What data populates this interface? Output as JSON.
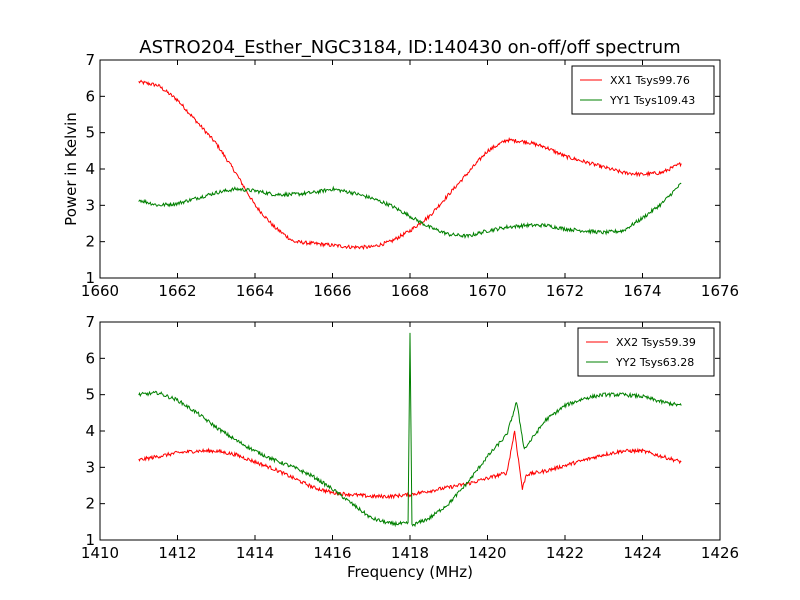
{
  "figure": {
    "title": "ASTRO204_Esther_NGC3184, ID:140430 on-off/off spectrum"
  },
  "chart_data": [
    {
      "type": "line",
      "title": "ASTRO204_Esther_NGC3184, ID:140430 on-off/off spectrum",
      "xlabel": "",
      "ylabel": "Power in Kelvin",
      "xlim": [
        1660,
        1676
      ],
      "ylim": [
        1,
        7
      ],
      "xticks": [
        "1660",
        "1662",
        "1664",
        "1666",
        "1668",
        "1670",
        "1672",
        "1674",
        "1676"
      ],
      "yticks": [
        "1",
        "2",
        "3",
        "4",
        "5",
        "6",
        "7"
      ],
      "grid": false,
      "legend_position": "top-right",
      "series": [
        {
          "name": "XX1 Tsys99.76",
          "color": "#ff0000",
          "x": [
            1661.0,
            1661.5,
            1662.0,
            1662.5,
            1663.0,
            1663.5,
            1664.0,
            1664.5,
            1665.0,
            1665.5,
            1666.0,
            1666.5,
            1667.0,
            1667.5,
            1668.0,
            1668.5,
            1669.0,
            1669.5,
            1670.0,
            1670.5,
            1671.0,
            1671.5,
            1672.0,
            1672.5,
            1673.0,
            1673.5,
            1674.0,
            1674.5,
            1675.0
          ],
          "values": [
            6.4,
            6.3,
            5.9,
            5.3,
            4.7,
            3.9,
            3.0,
            2.4,
            2.0,
            1.95,
            1.9,
            1.85,
            1.85,
            2.0,
            2.3,
            2.7,
            3.3,
            3.9,
            4.5,
            4.8,
            4.75,
            4.6,
            4.35,
            4.2,
            4.05,
            3.9,
            3.85,
            3.9,
            4.15
          ]
        },
        {
          "name": "YY1 Tsys109.43",
          "color": "#008000",
          "x": [
            1661.0,
            1661.5,
            1662.0,
            1662.5,
            1663.0,
            1663.5,
            1664.0,
            1664.5,
            1665.0,
            1665.5,
            1666.0,
            1666.5,
            1667.0,
            1667.5,
            1668.0,
            1668.5,
            1669.0,
            1669.5,
            1670.0,
            1670.5,
            1671.0,
            1671.5,
            1672.0,
            1672.5,
            1673.0,
            1673.5,
            1674.0,
            1674.5,
            1675.0
          ],
          "values": [
            3.15,
            3.0,
            3.05,
            3.2,
            3.35,
            3.45,
            3.4,
            3.3,
            3.3,
            3.35,
            3.45,
            3.35,
            3.2,
            3.0,
            2.7,
            2.4,
            2.2,
            2.15,
            2.3,
            2.4,
            2.45,
            2.45,
            2.35,
            2.3,
            2.25,
            2.3,
            2.65,
            3.05,
            3.6
          ]
        }
      ]
    },
    {
      "type": "line",
      "title": "",
      "xlabel": "Frequency (MHz)",
      "ylabel": "",
      "xlim": [
        1410,
        1426
      ],
      "ylim": [
        1,
        7
      ],
      "xticks": [
        "1410",
        "1412",
        "1414",
        "1416",
        "1418",
        "1420",
        "1422",
        "1424",
        "1426"
      ],
      "yticks": [
        "1",
        "2",
        "3",
        "4",
        "5",
        "6",
        "7"
      ],
      "grid": false,
      "legend_position": "top-right",
      "series": [
        {
          "name": "XX2 Tsys59.39",
          "color": "#ff0000",
          "x": [
            1411.0,
            1411.5,
            1412.0,
            1412.5,
            1413.0,
            1413.5,
            1414.0,
            1414.5,
            1415.0,
            1415.5,
            1416.0,
            1416.5,
            1417.0,
            1417.5,
            1418.0,
            1418.5,
            1419.0,
            1419.5,
            1420.0,
            1420.5,
            1420.7,
            1420.9,
            1421.0,
            1421.5,
            1422.0,
            1422.5,
            1423.0,
            1423.5,
            1424.0,
            1424.5,
            1425.0
          ],
          "values": [
            3.2,
            3.3,
            3.4,
            3.45,
            3.45,
            3.35,
            3.15,
            2.95,
            2.7,
            2.45,
            2.3,
            2.25,
            2.2,
            2.2,
            2.25,
            2.35,
            2.45,
            2.55,
            2.7,
            2.85,
            4.0,
            2.4,
            2.8,
            2.9,
            3.05,
            3.2,
            3.35,
            3.45,
            3.45,
            3.3,
            3.15
          ]
        },
        {
          "name": "YY2 Tsys63.28",
          "color": "#008000",
          "x": [
            1411.0,
            1411.5,
            1412.0,
            1412.5,
            1413.0,
            1413.5,
            1414.0,
            1414.5,
            1415.0,
            1415.5,
            1416.0,
            1416.5,
            1417.0,
            1417.5,
            1417.95,
            1418.0,
            1418.05,
            1418.5,
            1419.0,
            1419.5,
            1420.0,
            1420.5,
            1420.75,
            1420.95,
            1421.5,
            1422.0,
            1422.5,
            1423.0,
            1423.5,
            1424.0,
            1424.5,
            1425.0
          ],
          "values": [
            5.0,
            5.05,
            4.85,
            4.5,
            4.1,
            3.75,
            3.45,
            3.2,
            3.0,
            2.75,
            2.4,
            2.0,
            1.6,
            1.45,
            1.45,
            6.7,
            1.4,
            1.6,
            2.0,
            2.6,
            3.3,
            3.9,
            4.8,
            3.5,
            4.3,
            4.7,
            4.9,
            5.0,
            5.0,
            4.95,
            4.8,
            4.7
          ]
        }
      ]
    }
  ]
}
